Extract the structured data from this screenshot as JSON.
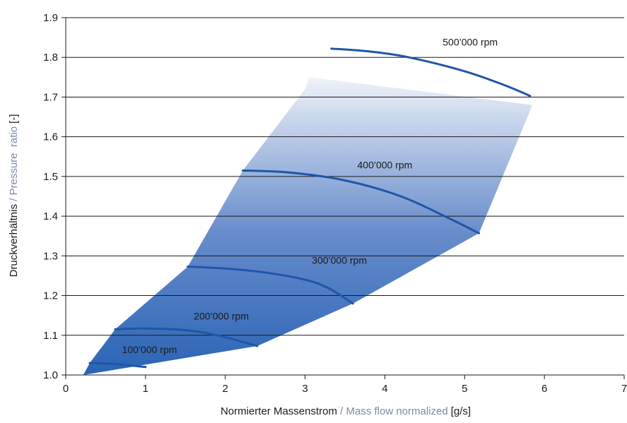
{
  "chart_data": {
    "type": "line",
    "xlabel": {
      "primary": "Normierter Massenstrom",
      "separator": " / ",
      "secondary": "Mass flow normalized",
      "unit": "[g/s]"
    },
    "ylabel": {
      "primary": "Druckverhältnis",
      "separator": " / ",
      "secondary": "Pressure  ratio",
      "unit": "[-]"
    },
    "xlim": [
      0,
      7
    ],
    "ylim": [
      1.0,
      1.9
    ],
    "x_ticks": [
      "0",
      "1",
      "2",
      "3",
      "4",
      "5",
      "6",
      "7"
    ],
    "y_ticks": [
      "1.0",
      "1.1",
      "1.2",
      "1.3",
      "1.4",
      "1.5",
      "1.6",
      "1.7",
      "1.8",
      "1.9"
    ],
    "grid": "horizontal",
    "map_region": {
      "fill_dark": "#2a63b5",
      "fill_light": "#ffffff",
      "surge_line": [
        [
          0.22,
          1.0
        ],
        [
          0.3,
          1.03
        ],
        [
          0.62,
          1.115
        ],
        [
          1.53,
          1.273
        ],
        [
          2.22,
          1.515
        ],
        [
          3.0,
          1.72
        ],
        [
          3.05,
          1.75
        ]
      ],
      "choke_line": [
        [
          5.85,
          1.68
        ],
        [
          5.18,
          1.357
        ],
        [
          3.6,
          1.18
        ],
        [
          2.4,
          1.073
        ],
        [
          0.22,
          1.0
        ]
      ]
    },
    "series": [
      {
        "name": "100’000 rpm",
        "points": [
          [
            0.3,
            1.03
          ],
          [
            0.6,
            1.028
          ],
          [
            1.0,
            1.02
          ]
        ]
      },
      {
        "name": "200’000 rpm",
        "points": [
          [
            0.62,
            1.115
          ],
          [
            1.0,
            1.117
          ],
          [
            1.5,
            1.113
          ],
          [
            1.9,
            1.1
          ],
          [
            2.4,
            1.073
          ]
        ]
      },
      {
        "name": "300’000 rpm",
        "points": [
          [
            1.53,
            1.273
          ],
          [
            2.0,
            1.268
          ],
          [
            2.5,
            1.258
          ],
          [
            3.0,
            1.24
          ],
          [
            3.3,
            1.218
          ],
          [
            3.6,
            1.18
          ]
        ]
      },
      {
        "name": "400’000 rpm",
        "points": [
          [
            2.22,
            1.515
          ],
          [
            2.8,
            1.51
          ],
          [
            3.5,
            1.49
          ],
          [
            4.2,
            1.45
          ],
          [
            4.8,
            1.395
          ],
          [
            5.18,
            1.357
          ]
        ]
      },
      {
        "name": "500’000 rpm",
        "points": [
          [
            3.33,
            1.822
          ],
          [
            3.8,
            1.815
          ],
          [
            4.3,
            1.8
          ],
          [
            5.0,
            1.765
          ],
          [
            5.5,
            1.73
          ],
          [
            5.82,
            1.703
          ]
        ]
      }
    ],
    "labels": [
      {
        "text": "100’000 rpm",
        "x": 1.05,
        "y": 1.055
      },
      {
        "text": "200’000 rpm",
        "x": 1.95,
        "y": 1.14
      },
      {
        "text": "300’000 rpm",
        "x": 3.43,
        "y": 1.28
      },
      {
        "text": "400’000 rpm",
        "x": 4.0,
        "y": 1.52
      },
      {
        "text": "500’000 rpm",
        "x": 5.07,
        "y": 1.83
      }
    ],
    "colors": {
      "curve": "#1f56a8",
      "axis_primary": "#1a1a1a",
      "axis_secondary": "#7c8aa6",
      "grid": "#1a1a1a"
    }
  }
}
